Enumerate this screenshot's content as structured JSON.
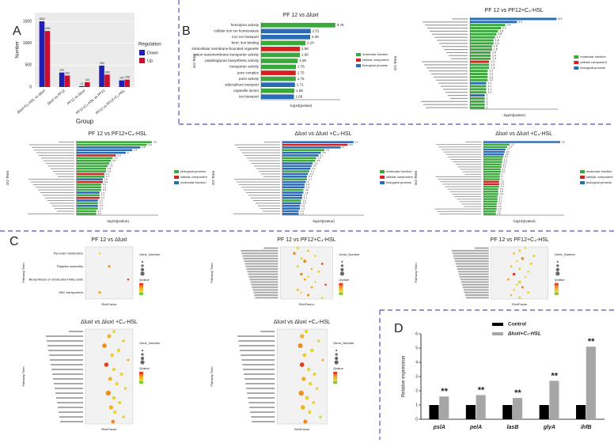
{
  "panel_labels": [
    "A",
    "B",
    "C",
    "D"
  ],
  "chart_data": [
    {
      "type": "bar",
      "ylabel": "Number",
      "xlabel": "Group",
      "legend_title": "Regulation",
      "rotate_labels": true,
      "categories": [
        "ΔluxI+C₄-HSL vs ΔluxI",
        "ΔluxI vs PF12",
        "PF12 vs ΔluxI",
        "PF12+C₄-HSL vs PF12",
        "PF12 vs PF12+C₄-HSL"
      ],
      "series": [
        {
          "name": "Down",
          "color": "#1f1fb4",
          "values": [
            1502,
            331,
            21,
            490,
            152
          ]
        },
        {
          "name": "Up",
          "color": "#c8102e",
          "values": [
            1281,
            262,
            110,
            283,
            168
          ]
        }
      ],
      "ylim": [
        0,
        1700
      ],
      "yticks": [
        0,
        500,
        1000,
        1500
      ]
    },
    {
      "type": "barh",
      "title": "PF 12 vs ΔluxI",
      "xlabel": "-log10(pvalue)",
      "ylabel": "GO Term",
      "categories": [
        "hemolysin activity",
        "cellular iron ion homeostasis",
        "iron ion transport",
        "ferric iron binding",
        "intracellular membrane-bounded organelle",
        "cation transmembrane transporter activity",
        "peptidoglycan biosynthetic activity",
        "transporter activity",
        "pore complex",
        "porin activity",
        "siderophore transport",
        "organelle lumen",
        "ion transport"
      ],
      "values": [
        3.75,
        2.51,
        2.48,
        2.24,
        1.96,
        1.96,
        1.85,
        1.76,
        1.75,
        1.75,
        1.71,
        1.68,
        1.66
      ],
      "bar_colors": [
        "#3aa83a",
        "#2a6bb5",
        "#2a6bb5",
        "#3aa83a",
        "#d62020",
        "#3aa83a",
        "#3aa83a",
        "#3aa83a",
        "#d62020",
        "#3aa83a",
        "#2a6bb5",
        "#3aa83a",
        "#2a6bb5"
      ],
      "xlim": [
        0,
        4
      ],
      "legend": [
        {
          "name": "molecular function",
          "color": "#3aa83a"
        },
        {
          "name": "cellular component",
          "color": "#d62020"
        },
        {
          "name": "biological process",
          "color": "#2a6bb5"
        }
      ]
    },
    {
      "type": "barh",
      "title": "PF 12 vs PF12+C₄-HSL",
      "xlabel": "-log10(pvalue)",
      "ylabel": "GO Term",
      "categories": [
        null,
        null,
        null,
        null,
        null,
        null,
        null,
        null,
        null,
        null,
        null,
        null,
        null,
        null,
        null,
        null,
        null,
        null,
        null,
        null,
        null,
        null,
        null,
        null,
        null,
        null,
        null,
        null,
        null,
        null
      ],
      "values": [
        5.9,
        3.2,
        2.4,
        2.1,
        1.9,
        1.8,
        1.7,
        1.6,
        1.6,
        1.5,
        1.5,
        1.4,
        1.4,
        1.4,
        1.3,
        1.3,
        1.3,
        1.2,
        1.2,
        1.2,
        1.2,
        1.1,
        1.1,
        1.1,
        1.1,
        1.0,
        1.0,
        1.0,
        1.0,
        1.0
      ],
      "bar_colors": [
        "#2a6bb5",
        "#2a6bb5",
        "#3aa83a",
        "#3aa83a",
        "#3aa83a",
        "#3aa83a",
        "#3aa83a",
        "#3aa83a",
        "#3aa83a",
        "#3aa83a",
        "#3aa83a",
        "#3aa83a",
        "#3aa83a",
        "#3aa83a",
        "#d62020",
        "#3aa83a",
        "#3aa83a",
        "#3aa83a",
        "#3aa83a",
        "#3aa83a",
        "#3aa83a",
        "#2a6bb5",
        "#3aa83a",
        "#3aa83a",
        "#3aa83a",
        "#2a6bb5",
        "#3aa83a",
        "#3aa83a",
        "#3aa83a",
        "#3aa83a"
      ],
      "xlim": [
        0,
        6
      ],
      "legend": [
        {
          "name": "molecular function",
          "color": "#3aa83a"
        },
        {
          "name": "cellular component",
          "color": "#d62020"
        },
        {
          "name": "biological process",
          "color": "#2a6bb5"
        }
      ]
    },
    {
      "type": "barh",
      "title": "PF 12 vs PF12+C₄-HSL",
      "xlabel": "-log10(pvalue)",
      "ylabel": "GO Term",
      "categories": [
        null,
        null,
        null,
        null,
        null,
        null,
        null,
        null,
        null,
        null,
        null,
        null,
        null,
        null,
        null,
        null,
        null,
        null,
        null,
        null,
        null,
        null,
        null,
        null,
        null,
        null,
        null,
        null
      ],
      "values": [
        4.6,
        4.3,
        3.9,
        3.4,
        3.0,
        2.4,
        2.2,
        2.1,
        2.0,
        1.9,
        1.8,
        1.8,
        1.7,
        1.7,
        1.6,
        1.6,
        1.5,
        1.5,
        1.5,
        1.4,
        1.4,
        1.4,
        1.3,
        1.3,
        1.3,
        1.3,
        1.2,
        1.2
      ],
      "bar_colors": [
        "#3aa83a",
        "#3aa83a",
        "#2a6bb5",
        "#2a6bb5",
        "#2a6bb5",
        "#d62020",
        "#3aa83a",
        "#3aa83a",
        "#3aa83a",
        "#3aa83a",
        "#3aa83a",
        "#3aa83a",
        "#d62020",
        "#3aa83a",
        "#2a6bb5",
        "#d62020",
        "#3aa83a",
        "#3aa83a",
        "#3aa83a",
        "#2a6bb5",
        "#3aa83a",
        "#d62020",
        "#2a6bb5",
        "#3aa83a",
        "#2a6bb5",
        "#3aa83a",
        "#3aa83a",
        "#3aa83a"
      ],
      "xlim": [
        0,
        5
      ],
      "legend": [
        {
          "name": "biological process",
          "color": "#3aa83a"
        },
        {
          "name": "cellular component",
          "color": "#d62020"
        },
        {
          "name": "molecular function",
          "color": "#2a6bb5"
        }
      ]
    },
    {
      "type": "barh",
      "title": "ΔluxI vs ΔluxI +C₄-HSL",
      "xlabel": "-log10(pvalue)",
      "ylabel": "GO Term",
      "categories": [
        null,
        null,
        null,
        null,
        null,
        null,
        null,
        null,
        null,
        null,
        null,
        null,
        null,
        null,
        null,
        null,
        null,
        null,
        null,
        null,
        null,
        null,
        null,
        null,
        null,
        null,
        null,
        null
      ],
      "values": [
        6.1,
        5.6,
        5.0,
        3.6,
        3.3,
        3.1,
        2.9,
        2.8,
        2.6,
        2.5,
        2.4,
        2.3,
        2.2,
        2.1,
        2.1,
        2.0,
        1.9,
        1.9,
        1.8,
        1.8,
        1.7,
        1.7,
        1.6,
        1.6,
        1.5,
        1.5,
        1.4,
        1.4
      ],
      "bar_colors": [
        "#2a6bb5",
        "#d62020",
        "#2a6bb5",
        "#3aa83a",
        "#2a6bb5",
        "#2a6bb5",
        "#3aa83a",
        "#3aa83a",
        "#2a6bb5",
        "#2a6bb5",
        "#2a6bb5",
        "#3aa83a",
        "#2a6bb5",
        "#2a6bb5",
        "#3aa83a",
        "#2a6bb5",
        "#2a6bb5",
        "#2a6bb5",
        "#3aa83a",
        "#2a6bb5",
        "#2a6bb5",
        "#2a6bb5",
        "#3aa83a",
        "#2a6bb5",
        "#2a6bb5",
        "#2a6bb5",
        "#2a6bb5",
        "#2a6bb5"
      ],
      "xlim": [
        0,
        7
      ],
      "legend": [
        {
          "name": "molecular function",
          "color": "#3aa83a"
        },
        {
          "name": "cellular component",
          "color": "#d62020"
        },
        {
          "name": "biological process",
          "color": "#2a6bb5"
        }
      ]
    },
    {
      "type": "barh",
      "title": "ΔluxI vs ΔluxI +C₄-HSL",
      "xlabel": "-log10(pvalue)",
      "ylabel": "GO Term",
      "categories": [
        null,
        null,
        null,
        null,
        null,
        null,
        null,
        null,
        null,
        null,
        null,
        null,
        null,
        null,
        null,
        null,
        null,
        null,
        null,
        null,
        null,
        null,
        null,
        null,
        null,
        null,
        null,
        null,
        null,
        null
      ],
      "values": [
        9.5,
        3.2,
        2.9,
        2.7,
        2.6,
        2.5,
        2.4,
        2.3,
        2.3,
        2.2,
        2.2,
        2.1,
        2.1,
        2.0,
        2.0,
        2.0,
        1.9,
        1.9,
        1.9,
        1.8,
        1.8,
        1.8,
        1.7,
        1.7,
        1.7,
        1.6,
        1.6,
        1.6,
        1.5,
        1.5
      ],
      "bar_colors": [
        "#2a6bb5",
        "#3aa83a",
        "#3aa83a",
        "#2a6bb5",
        "#2a6bb5",
        "#2a6bb5",
        "#3aa83a",
        "#3aa83a",
        "#3aa83a",
        "#3aa83a",
        "#3aa83a",
        "#3aa83a",
        "#3aa83a",
        "#3aa83a",
        "#3aa83a",
        "#3aa83a",
        "#d62020",
        "#d62020",
        "#3aa83a",
        "#3aa83a",
        "#3aa83a",
        "#3aa83a",
        "#3aa83a",
        "#3aa83a",
        "#3aa83a",
        "#3aa83a",
        "#3aa83a",
        "#3aa83a",
        "#3aa83a",
        "#3aa83a"
      ],
      "xlim": [
        0,
        10
      ],
      "legend": [
        {
          "name": "molecular function",
          "color": "#3aa83a"
        },
        {
          "name": "cellular component",
          "color": "#d62020"
        },
        {
          "name": "biological process",
          "color": "#2a6bb5"
        }
      ]
    },
    {
      "type": "scatter",
      "title": "PF 12 vs ΔluxI",
      "xlabel": "RichFactor",
      "ylabel": "Pathway Term",
      "size_title": "Gene_Number",
      "color_title": "Qvalue",
      "categories": [
        "Pyruvate metabolism",
        "Flagellar assembly",
        "Biosynthesis of unsaturated fatty acids",
        "ABC transporters"
      ],
      "x": [
        0.03,
        0.05,
        0.09,
        0.03
      ],
      "sizes": [
        2,
        3,
        2,
        4
      ],
      "point_colors": [
        "#e8d43a",
        "#f08a1e",
        "#e83a1e",
        "#f0b42a"
      ],
      "xlim": [
        0,
        0.1
      ]
    },
    {
      "type": "scatter",
      "title": "PF 12 vs PF12+C₄-HSL",
      "xlabel": "RichFactor",
      "ylabel": "Pathway Term",
      "size_title": "Gene_Number",
      "color_title": "Qvalue",
      "categories": [
        null,
        null,
        null,
        null,
        null,
        null,
        null,
        null,
        null,
        null,
        null,
        null,
        null,
        null,
        null,
        null,
        null,
        null,
        null,
        null
      ],
      "x": [
        0.05,
        0.08,
        0.04,
        0.1,
        0.06,
        0.07,
        0.12,
        0.05,
        0.09,
        0.11,
        0.06,
        0.08,
        0.07,
        0.1,
        0.13,
        0.09,
        0.05,
        0.06,
        0.08,
        0.12
      ],
      "sizes": [
        3,
        2,
        4,
        2,
        3,
        5,
        2,
        3,
        2,
        3,
        4,
        2,
        3,
        2,
        2,
        3,
        4,
        2,
        3,
        2
      ],
      "point_colors": [
        "#e8d43a",
        "#f0b42a",
        "#f08a1e",
        "#e8d43a",
        "#e8d43a",
        "#f08a1e",
        "#e83a1e",
        "#e8d43a",
        "#f0b42a",
        "#e8d43a",
        "#f08a1e",
        "#e8d43a",
        "#f0b42a",
        "#e8d43a",
        "#e83a1e",
        "#f0b42a",
        "#e8d43a",
        "#e8d43a",
        "#f08a1e",
        "#e8d43a"
      ],
      "xlim": [
        0,
        0.15
      ]
    },
    {
      "type": "scatter",
      "title": "PF 12 vs PF12+C₄-HSL",
      "xlabel": "RichFactor",
      "ylabel": "Pathway Term",
      "size_title": "Gene_Number",
      "color_title": "Qvalue",
      "categories": [
        null,
        null,
        null,
        null,
        null,
        null,
        null,
        null,
        null,
        null,
        null,
        null,
        null,
        null,
        null,
        null,
        null,
        null,
        null,
        null
      ],
      "x": [
        0.12,
        0.1,
        0.08,
        0.15,
        0.11,
        0.09,
        0.14,
        0.07,
        0.1,
        0.13,
        0.08,
        0.12,
        0.06,
        0.1,
        0.09,
        0.11,
        0.08,
        0.13,
        0.07,
        0.1
      ],
      "sizes": [
        2,
        3,
        2,
        3,
        4,
        2,
        3,
        2,
        3,
        2,
        4,
        2,
        3,
        5,
        2,
        3,
        2,
        3,
        2,
        3
      ],
      "point_colors": [
        "#e8d43a",
        "#e8d43a",
        "#f0b42a",
        "#e8d43a",
        "#f08a1e",
        "#e8d43a",
        "#e8d43a",
        "#f0b42a",
        "#e8d43a",
        "#e8d43a",
        "#e83a1e",
        "#e8d43a",
        "#f0b42a",
        "#e8d43a",
        "#e8d43a",
        "#f08a1e",
        "#e8d43a",
        "#e8d43a",
        "#f0b42a",
        "#e8d43a"
      ],
      "xlim": [
        0,
        0.2
      ]
    },
    {
      "type": "scatter",
      "title": "ΔluxI vs ΔluxI +C₄-HSL",
      "xlabel": "RichFactor",
      "ylabel": "Pathway Term",
      "size_title": "Gene_Number",
      "color_title": "Qvalue",
      "categories": [
        null,
        null,
        null,
        null,
        null,
        null,
        null,
        null,
        null,
        null,
        null,
        null,
        null,
        null,
        null,
        null,
        null,
        null,
        null,
        null
      ],
      "x": [
        0.3,
        0.25,
        0.4,
        0.2,
        0.35,
        0.28,
        0.45,
        0.22,
        0.3,
        0.38,
        0.26,
        0.33,
        0.42,
        0.24,
        0.3,
        0.36,
        0.27,
        0.31,
        0.4,
        0.29
      ],
      "sizes": [
        5,
        8,
        4,
        10,
        6,
        7,
        3,
        9,
        6,
        5,
        8,
        6,
        4,
        12,
        7,
        5,
        9,
        6,
        4,
        7
      ],
      "point_colors": [
        "#e8d43a",
        "#f0b42a",
        "#e8d43a",
        "#f08a1e",
        "#e8d43a",
        "#e8d43a",
        "#f0b42a",
        "#e83a1e",
        "#e8d43a",
        "#e8d43a",
        "#f0b42a",
        "#e8d43a",
        "#e8d43a",
        "#f08a1e",
        "#e8d43a",
        "#e8d43a",
        "#f0b42a",
        "#e8d43a",
        "#e8d43a",
        "#f08a1e"
      ],
      "xlim": [
        0,
        0.5
      ]
    },
    {
      "type": "scatter",
      "title": "ΔluxI vs ΔluxI +C₄-HSL",
      "xlabel": "RichFactor",
      "ylabel": "Pathway Term",
      "size_title": "Gene_Number",
      "color_title": "Qvalue",
      "categories": [
        null,
        null,
        null,
        null,
        null,
        null,
        null,
        null,
        null,
        null,
        null,
        null,
        null,
        null,
        null,
        null,
        null,
        null,
        null,
        null
      ],
      "x": [
        0.35,
        0.3,
        0.5,
        0.28,
        0.42,
        0.33,
        0.55,
        0.3,
        0.38,
        0.45,
        0.32,
        0.4,
        0.48,
        0.29,
        0.36,
        0.44,
        0.31,
        0.39,
        0.52,
        0.34
      ],
      "sizes": [
        6,
        9,
        4,
        11,
        7,
        8,
        3,
        10,
        6,
        5,
        9,
        7,
        4,
        12,
        8,
        5,
        10,
        6,
        4,
        8
      ],
      "point_colors": [
        "#e8d43a",
        "#f0b42a",
        "#e8d43a",
        "#f08a1e",
        "#e8d43a",
        "#e8d43a",
        "#f0b42a",
        "#e83a1e",
        "#e8d43a",
        "#e8d43a",
        "#f0b42a",
        "#e8d43a",
        "#e8d43a",
        "#f08a1e",
        "#e8d43a",
        "#e8d43a",
        "#f0b42a",
        "#e8d43a",
        "#e8d43a",
        "#f08a1e"
      ],
      "xlim": [
        0,
        0.6
      ]
    },
    {
      "type": "bar",
      "ylabel": "Relative expression",
      "italic_categories": true,
      "categories": [
        "pslA",
        "pelA",
        "lasB",
        "glyA",
        "ihfB"
      ],
      "series": [
        {
          "name": "Control",
          "color": "#000000",
          "values": [
            1,
            1,
            1,
            1,
            1
          ]
        },
        {
          "name": "ΔluxI+C₄-HSL",
          "color": "#a6a6a6",
          "values": [
            1.6,
            1.7,
            1.5,
            2.7,
            5.1
          ]
        }
      ],
      "annotations": [
        "**",
        "**",
        "**",
        "**",
        "**"
      ],
      "ylim": [
        0,
        6
      ],
      "yticks": [
        0,
        1,
        2,
        3,
        4,
        5,
        6
      ]
    }
  ]
}
